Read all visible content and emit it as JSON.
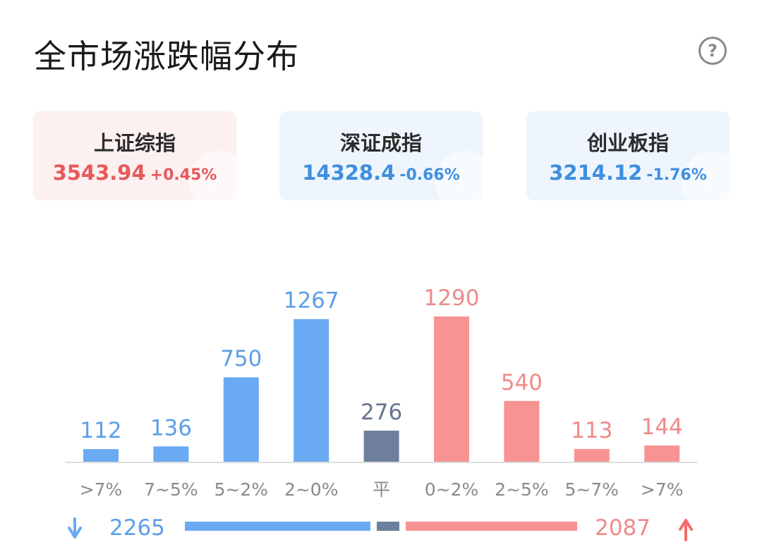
{
  "title": "全市场涨跌幅分布",
  "help_icon": "question-circle-icon",
  "indices": [
    {
      "name": "上证综指",
      "value": "3543.94",
      "change": "+0.45%",
      "trend": "up"
    },
    {
      "name": "深证成指",
      "value": "14328.4",
      "change": "-0.66%",
      "trend": "down"
    },
    {
      "name": "创业板指",
      "value": "3214.12",
      "change": "-1.76%",
      "trend": "down"
    }
  ],
  "colors": {
    "down": "#6aaaf3",
    "flat": "#6e7f9c",
    "up": "#f79393",
    "down_text": "#5a9fe8",
    "flat_text": "#66758f",
    "up_text": "#ef8a8a",
    "axis": "#dddddd",
    "tick_text": "#8a8a8a"
  },
  "chart_data": {
    "type": "bar",
    "categories": [
      ">7%",
      "7~5%",
      "5~2%",
      "2~0%",
      "平",
      "0~2%",
      "2~5%",
      "5~7%",
      ">7%"
    ],
    "values": [
      112,
      136,
      750,
      1267,
      276,
      1290,
      540,
      113,
      144
    ],
    "groups": [
      "down",
      "down",
      "down",
      "down",
      "flat",
      "up",
      "up",
      "up",
      "up"
    ],
    "ylim": [
      0,
      1290
    ]
  },
  "summary": {
    "down_total": "2265",
    "up_total": "2087",
    "down_icon": "arrow-down-icon",
    "up_icon": "arrow-up-icon",
    "down_count": 2265,
    "flat_count": 276,
    "up_count": 2087
  }
}
